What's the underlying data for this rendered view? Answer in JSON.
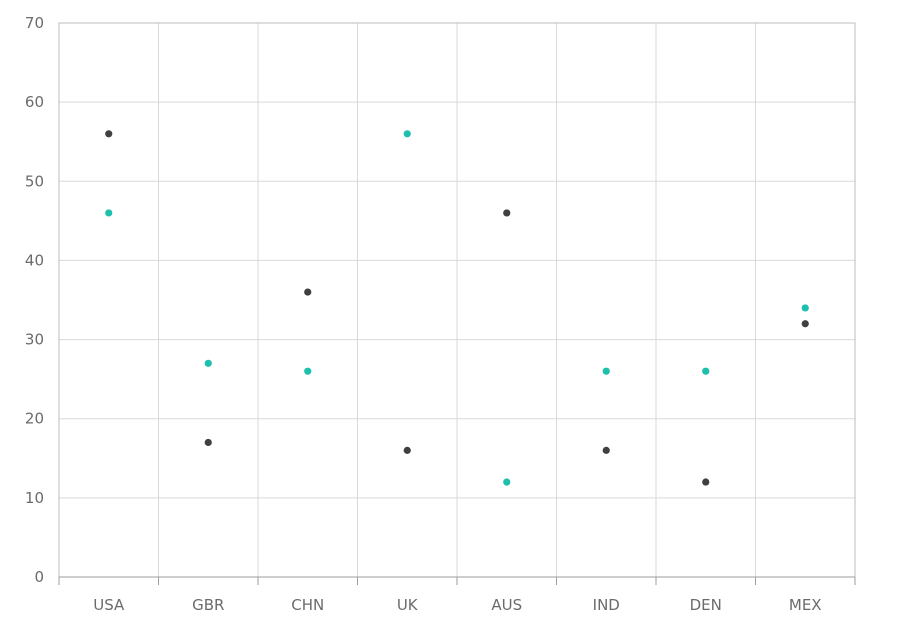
{
  "chart_data": {
    "type": "scatter",
    "title": "",
    "xlabel": "",
    "ylabel": "",
    "categories": [
      "USA",
      "GBR",
      "CHN",
      "UK",
      "AUS",
      "IND",
      "DEN",
      "MEX"
    ],
    "ylim": [
      0,
      70
    ],
    "yticks": [
      0,
      10,
      20,
      30,
      40,
      50,
      60,
      70
    ],
    "grid": true,
    "legend": "none",
    "series": [
      {
        "color": "#404040",
        "values": [
          56,
          17,
          36,
          16,
          46,
          16,
          12,
          32
        ]
      },
      {
        "color": "#1dbfad",
        "values": [
          46,
          27,
          26,
          56,
          12,
          26,
          26,
          34
        ]
      }
    ]
  }
}
